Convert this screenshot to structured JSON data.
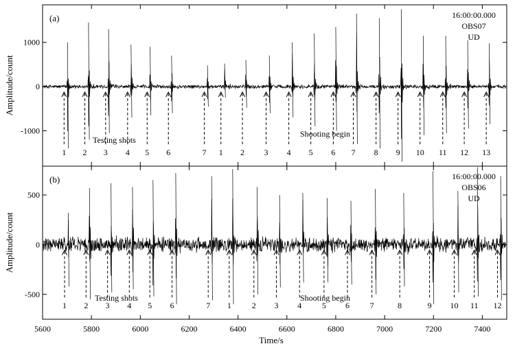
{
  "chart_data": {
    "type": "line",
    "xlabel": "Time/s",
    "xlim": [
      5600,
      7500
    ],
    "xticks": [
      5600,
      5800,
      6000,
      6200,
      6400,
      6600,
      6800,
      7000,
      7200,
      7400
    ],
    "panels": [
      {
        "label": "(a)",
        "ylabel": "Amplitude/count",
        "ylim": [
          -1800,
          1850
        ],
        "yticks": [
          -1000,
          0,
          1000
        ],
        "info": [
          "16:00:00.000",
          "OBS07",
          "UD"
        ],
        "noise_amplitude": 60,
        "testing_shots_label": "Testing shots",
        "shooting_label": "Shooting begin",
        "shots": [
          {
            "num": "1",
            "t": 5702,
            "peak": 1000,
            "trough": -1400,
            "arrow_t": 5688
          },
          {
            "num": "2",
            "t": 5788,
            "peak": 1450,
            "trough": -1200,
            "arrow_t": 5773
          },
          {
            "num": "3",
            "t": 5870,
            "peak": 1300,
            "trough": -1050,
            "arrow_t": 5858
          },
          {
            "num": "4",
            "t": 5962,
            "peak": 950,
            "trough": -700,
            "arrow_t": 5948
          },
          {
            "num": "5",
            "t": 6040,
            "peak": 900,
            "trough": -650,
            "arrow_t": 6028
          },
          {
            "num": "6",
            "t": 6128,
            "peak": 700,
            "trough": -600,
            "arrow_t": 6115
          },
          {
            "num": "7",
            "t": 6275,
            "peak": 480,
            "trough": -450,
            "arrow_t": 6262
          },
          {
            "num": "1",
            "t": 6345,
            "peak": 520,
            "trough": -250,
            "arrow_t": 6330
          },
          {
            "num": "2",
            "t": 6432,
            "peak": 600,
            "trough": -480,
            "arrow_t": 6418
          },
          {
            "num": "3",
            "t": 6528,
            "peak": 700,
            "trough": -600,
            "arrow_t": 6515
          },
          {
            "num": "4",
            "t": 6622,
            "peak": 1000,
            "trough": -700,
            "arrow_t": 6608
          },
          {
            "num": "5",
            "t": 6712,
            "peak": 1200,
            "trough": -900,
            "arrow_t": 6698
          },
          {
            "num": "6",
            "t": 6800,
            "peak": 1350,
            "trough": -1000,
            "arrow_t": 6790
          },
          {
            "num": "7",
            "t": 6885,
            "peak": 1650,
            "trough": -1300,
            "arrow_t": 6872
          },
          {
            "num": "8",
            "t": 6978,
            "peak": 1550,
            "trough": -1400,
            "arrow_t": 6965
          },
          {
            "num": "9",
            "t": 7068,
            "peak": 1750,
            "trough": -1700,
            "arrow_t": 7055
          },
          {
            "num": "10",
            "t": 7158,
            "peak": 1150,
            "trough": -1100,
            "arrow_t": 7145
          },
          {
            "num": "11",
            "t": 7250,
            "peak": 1150,
            "trough": -1050,
            "arrow_t": 7238
          },
          {
            "num": "12",
            "t": 7340,
            "peak": 1050,
            "trough": -950,
            "arrow_t": 7326
          },
          {
            "num": "13",
            "t": 7428,
            "peak": 980,
            "trough": -850,
            "arrow_t": 7416
          }
        ]
      },
      {
        "label": "(b)",
        "ylabel": "Amplitude/count",
        "ylim": [
          -750,
          790
        ],
        "yticks": [
          -500,
          0,
          500
        ],
        "info": [
          "16:00:00.000",
          "OBS06",
          "UD"
        ],
        "noise_amplitude": 60,
        "testing_shots_label": "Testing shots",
        "shooting_label": "Shooting begin",
        "shots": [
          {
            "num": "1",
            "t": 5705,
            "peak": 320,
            "trough": -420,
            "arrow_t": 5690
          },
          {
            "num": "2",
            "t": 5792,
            "peak": 570,
            "trough": -550,
            "arrow_t": 5778
          },
          {
            "num": "3",
            "t": 5880,
            "peak": 620,
            "trough": -480,
            "arrow_t": 5866
          },
          {
            "num": "4",
            "t": 5968,
            "peak": 580,
            "trough": -450,
            "arrow_t": 5955
          },
          {
            "num": "5",
            "t": 6052,
            "peak": 650,
            "trough": -520,
            "arrow_t": 6039
          },
          {
            "num": "6",
            "t": 6145,
            "peak": 720,
            "trough": -600,
            "arrow_t": 6130
          },
          {
            "num": "7",
            "t": 6292,
            "peak": 690,
            "trough": -560,
            "arrow_t": 6278
          },
          {
            "num": "1",
            "t": 6378,
            "peak": 760,
            "trough": -600,
            "arrow_t": 6364
          },
          {
            "num": "2",
            "t": 6478,
            "peak": 580,
            "trough": -500,
            "arrow_t": 6465
          },
          {
            "num": "3",
            "t": 6570,
            "peak": 500,
            "trough": -430,
            "arrow_t": 6557
          },
          {
            "num": "4",
            "t": 6665,
            "peak": 520,
            "trough": -380,
            "arrow_t": 6652
          },
          {
            "num": "5",
            "t": 6765,
            "peak": 470,
            "trough": -380,
            "arrow_t": 6752
          },
          {
            "num": "6",
            "t": 6862,
            "peak": 440,
            "trough": -400,
            "arrow_t": 6848
          },
          {
            "num": "7",
            "t": 6962,
            "peak": 560,
            "trough": -500,
            "arrow_t": 6948
          },
          {
            "num": "8",
            "t": 7078,
            "peak": 520,
            "trough": -420,
            "arrow_t": 7062
          },
          {
            "num": "9",
            "t": 7198,
            "peak": 740,
            "trough": -600,
            "arrow_t": 7184
          },
          {
            "num": "10",
            "t": 7300,
            "peak": 540,
            "trough": -480,
            "arrow_t": 7285
          },
          {
            "num": "11",
            "t": 7380,
            "peak": 780,
            "trough": -520,
            "arrow_t": 7367
          },
          {
            "num": "12",
            "t": 7475,
            "peak": 690,
            "trough": -560,
            "arrow_t": 7462
          }
        ]
      }
    ]
  }
}
